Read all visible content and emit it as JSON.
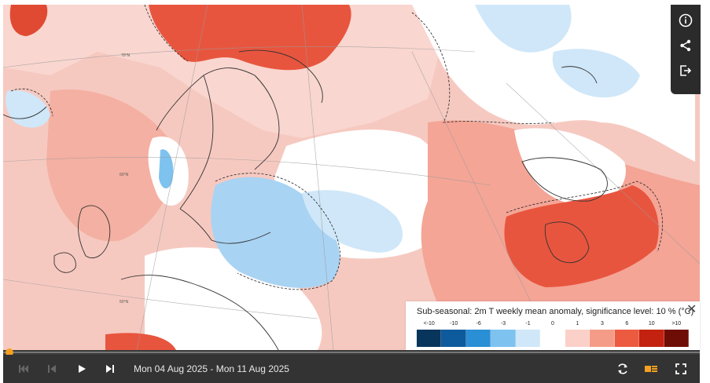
{
  "map": {
    "colors": {
      "ocean_warm": "#f6c9c0",
      "warm_1": "#f9d6cf",
      "warm_3": "#f4a596",
      "warm_6": "#e8553e",
      "neutral": "#ffffff",
      "cool_1": "#dceefa",
      "cool_3": "#a9d3f3",
      "coast": "#333333"
    },
    "latitude_labels": [
      "70°N",
      "60°N",
      "50°N"
    ]
  },
  "tools": [
    {
      "name": "info",
      "icon": "info-icon"
    },
    {
      "name": "share",
      "icon": "share-icon"
    },
    {
      "name": "export",
      "icon": "export-icon"
    }
  ],
  "legend": {
    "title": "Sub-seasonal: 2m T weekly mean anomaly, significance level: 10 % (°C)",
    "close_label": "✕",
    "ticks": [
      "<-10",
      "-10",
      "-6",
      "-3",
      "-1",
      "0",
      "1",
      "3",
      "6",
      "10",
      ">10"
    ],
    "colors": [
      "#08355c",
      "#0d5a9c",
      "#2a8fd4",
      "#7ec2ef",
      "#cfe7f8",
      "#ffffff",
      "#fbd0c8",
      "#f59c88",
      "#ec5a3f",
      "#c2220f",
      "#6e0d05"
    ]
  },
  "player": {
    "date_range": "Mon 04 Aug 2025 - Mon 11 Aug 2025",
    "progress": 0.0,
    "buttons": [
      "first-frame",
      "previous-frame",
      "play",
      "last-frame"
    ],
    "right_buttons": [
      "refresh",
      "layers",
      "fullscreen"
    ],
    "accent": "#f4a020"
  }
}
